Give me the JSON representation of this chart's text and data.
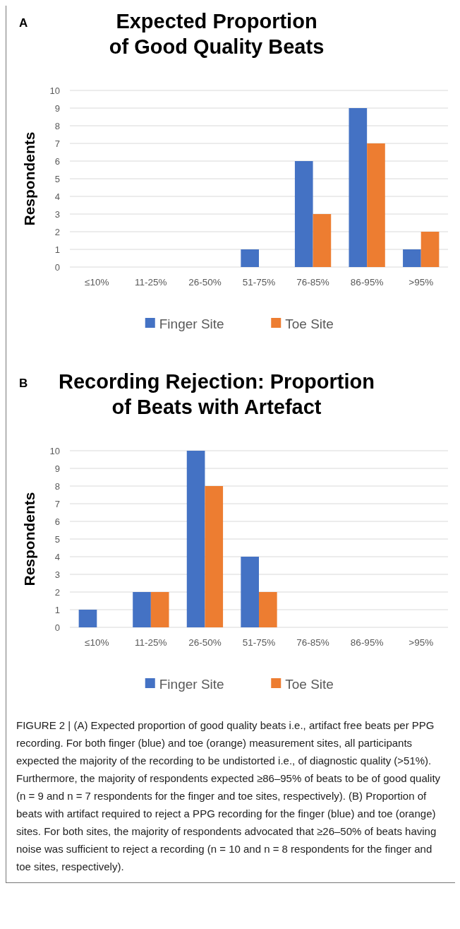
{
  "chart_data": [
    {
      "type": "bar",
      "title": "Expected Proportion of Good Quality Beats",
      "ylabel": "Respondents",
      "categories": [
        "≤10%",
        "11-25%",
        "26-50%",
        "51-75%",
        "76-85%",
        "86-95%",
        ">95%"
      ],
      "series": [
        {
          "name": "Finger Site",
          "color": "#4472c4",
          "values": [
            0,
            0,
            0,
            1,
            6,
            9,
            1
          ]
        },
        {
          "name": "Toe Site",
          "color": "#ed7d31",
          "values": [
            0,
            0,
            0,
            0,
            3,
            7,
            2
          ]
        }
      ],
      "ylim": [
        0,
        10
      ],
      "yticks": [
        0,
        1,
        2,
        3,
        4,
        5,
        6,
        7,
        8,
        9,
        10
      ],
      "grid": "y",
      "legend": "bottom",
      "annotations": [
        "A"
      ]
    },
    {
      "type": "bar",
      "title": "Recording Rejection: Proportion of Beats with Artefact",
      "ylabel": "Respondents",
      "categories": [
        "≤10%",
        "11-25%",
        "26-50%",
        "51-75%",
        "76-85%",
        "86-95%",
        ">95%"
      ],
      "series": [
        {
          "name": "Finger Site",
          "color": "#4472c4",
          "values": [
            1,
            2,
            10,
            4,
            0,
            0,
            0
          ]
        },
        {
          "name": "Toe Site",
          "color": "#ed7d31",
          "values": [
            0,
            2,
            8,
            2,
            0,
            0,
            0
          ]
        }
      ],
      "ylim": [
        0,
        10
      ],
      "yticks": [
        0,
        1,
        2,
        3,
        4,
        5,
        6,
        7,
        8,
        9,
        10
      ],
      "grid": "y",
      "legend": "bottom",
      "annotations": [
        "B",
        "FIGURE 2 | (A) Expected proportion of good quality beats i.e., artifact free beats per PPG recording. For both finger (blue) and toe (orange) measurement sites, all participants expected the majority of the recording to be undistorted i.e., of diagnostic quality (>51%). Furthermore, the majority of respondents expected ≥86–95% of beats to be of good quality (n = 9 and n = 7 respondents for the finger and toe sites, respectively). (B) Proportion of beats with artifact required to reject a PPG recording for the finger (blue) and toe (orange) sites. For both sites, the majority of respondents advocated that ≥26–50% of beats having noise was sufficient to reject a recording (n = 10 and n = 8 respondents for the finger and toe sites, respectively)."
      ]
    }
  ]
}
